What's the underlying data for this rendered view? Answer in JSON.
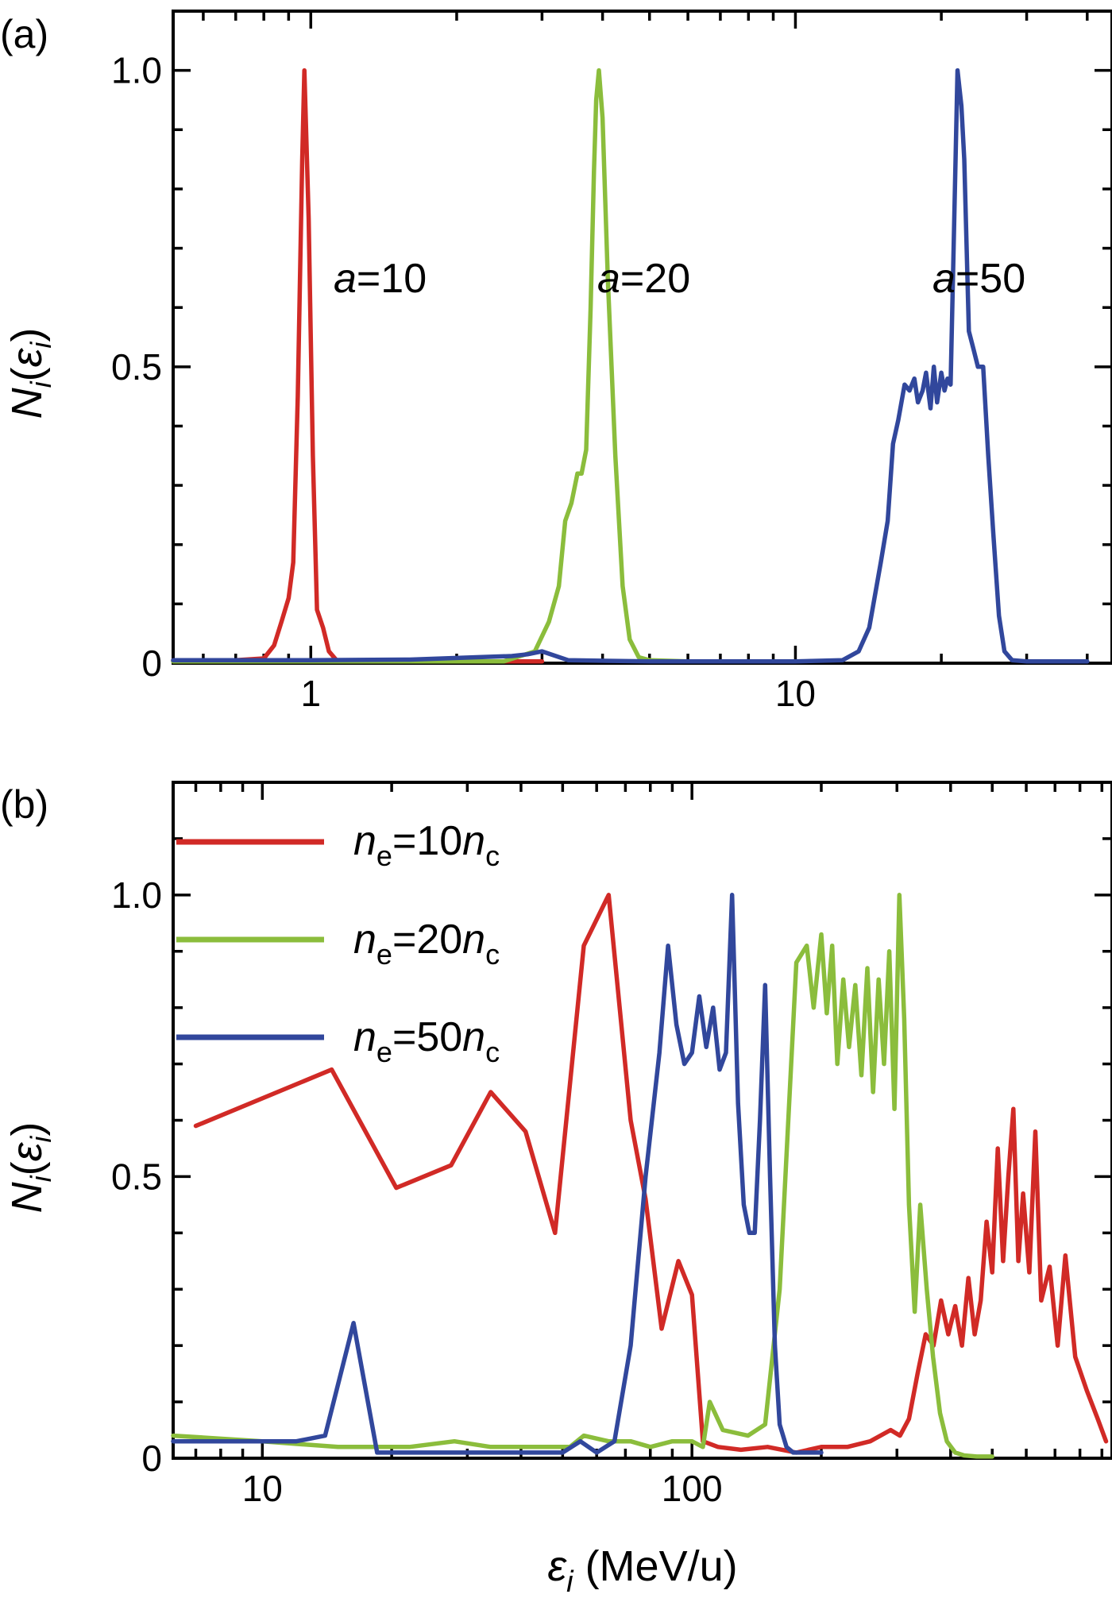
{
  "chart_data": [
    {
      "panel_label": "(a)",
      "type": "line",
      "x_scale": "log",
      "xlim": [
        0.52,
        45
      ],
      "ylim": [
        0,
        1.1
      ],
      "x_ticks": [
        {
          "value": 1,
          "label": "1"
        },
        {
          "value": 10,
          "label": "10"
        }
      ],
      "y_ticks": [
        {
          "value": 0,
          "label": "0"
        },
        {
          "value": 0.5,
          "label": "0.5"
        },
        {
          "value": 1.0,
          "label": "1.0"
        }
      ],
      "ylabel": {
        "main": "N",
        "sub1": "i",
        "open": "(",
        "eps": "ε",
        "sub2": "i",
        "close": ")"
      },
      "series": [
        {
          "annotation": {
            "italic": "a",
            "text": "=10"
          },
          "color": "#d12a26",
          "x": [
            0.52,
            0.7,
            0.8,
            0.84,
            0.87,
            0.9,
            0.92,
            0.94,
            0.96,
            0.97,
            0.99,
            1.01,
            1.03,
            1.06,
            1.09,
            1.13,
            1.2,
            1.5,
            2.0,
            3.0
          ],
          "y": [
            0.005,
            0.005,
            0.008,
            0.03,
            0.07,
            0.11,
            0.17,
            0.45,
            0.85,
            1.0,
            0.75,
            0.35,
            0.09,
            0.06,
            0.02,
            0.005,
            0.003,
            0.003,
            0.003,
            0.003
          ]
        },
        {
          "annotation": {
            "italic": "a",
            "text": "=20"
          },
          "color": "#8bbd3c",
          "x": [
            0.52,
            1.5,
            2.5,
            2.9,
            3.1,
            3.25,
            3.35,
            3.45,
            3.55,
            3.62,
            3.7,
            3.78,
            3.84,
            3.88,
            3.93,
            4.0,
            4.1,
            4.25,
            4.4,
            4.55,
            4.75,
            5.0,
            6.0
          ],
          "y": [
            0.003,
            0.003,
            0.003,
            0.02,
            0.07,
            0.13,
            0.24,
            0.27,
            0.32,
            0.32,
            0.36,
            0.6,
            0.83,
            0.95,
            1.0,
            0.92,
            0.65,
            0.35,
            0.13,
            0.04,
            0.01,
            0.005,
            0.003
          ]
        },
        {
          "annotation": {
            "italic": "a",
            "text": "=50"
          },
          "color": "#31479c",
          "x": [
            0.52,
            1.0,
            1.6,
            2.2,
            2.6,
            2.8,
            3.0,
            3.4,
            5.0,
            10.0,
            12.5,
            13.5,
            14.2,
            15.0,
            15.5,
            15.9,
            16.3,
            16.8,
            17.2,
            17.6,
            17.9,
            18.3,
            18.6,
            19.0,
            19.3,
            19.6,
            20.0,
            20.3,
            20.6,
            20.9,
            21.2,
            21.6,
            22.0,
            22.3,
            22.8,
            23.3,
            23.8,
            24.4,
            25.0,
            25.6,
            26.3,
            27.0,
            28.0,
            30.0,
            40.0
          ],
          "y": [
            0.005,
            0.005,
            0.006,
            0.01,
            0.012,
            0.015,
            0.02,
            0.005,
            0.003,
            0.003,
            0.005,
            0.02,
            0.06,
            0.17,
            0.24,
            0.37,
            0.41,
            0.47,
            0.46,
            0.48,
            0.44,
            0.46,
            0.49,
            0.43,
            0.5,
            0.44,
            0.49,
            0.46,
            0.48,
            0.47,
            0.7,
            1.0,
            0.94,
            0.85,
            0.56,
            0.53,
            0.5,
            0.5,
            0.35,
            0.22,
            0.08,
            0.02,
            0.005,
            0.003,
            0.003
          ]
        }
      ]
    },
    {
      "panel_label": "(b)",
      "type": "line",
      "x_scale": "log",
      "xlim": [
        6.2,
        950
      ],
      "ylim": [
        0,
        1.2
      ],
      "x_ticks": [
        {
          "value": 10,
          "label": "10"
        },
        {
          "value": 100,
          "label": "100"
        }
      ],
      "y_ticks": [
        {
          "value": 0,
          "label": "0"
        },
        {
          "value": 0.5,
          "label": "0.5"
        },
        {
          "value": 1.0,
          "label": "1.0"
        }
      ],
      "ylabel": {
        "main": "N",
        "sub1": "i",
        "open": "(",
        "eps": "ε",
        "sub2": "i",
        "close": ")"
      },
      "xlabel": {
        "eps": "ε",
        "sub": "i",
        "unit": " (MeV/u)"
      },
      "series": [
        {
          "legend": {
            "n1": "n",
            "s1": "e",
            "mid": "=10",
            "n2": "n",
            "s2": "c"
          },
          "color": "#d12a26",
          "x": [
            7.0,
            14.5,
            20.5,
            27.5,
            34,
            41,
            48,
            56,
            64,
            72,
            78,
            85,
            93,
            100,
            106,
            115,
            130,
            150,
            175,
            200,
            230,
            260,
            290,
            305,
            320,
            335,
            350,
            365,
            380,
            395,
            410,
            425,
            440,
            455,
            470,
            485,
            500,
            515,
            530,
            545,
            560,
            575,
            590,
            610,
            630,
            650,
            680,
            710,
            740,
            780,
            830,
            880,
            920
          ],
          "y": [
            0.59,
            0.69,
            0.48,
            0.52,
            0.65,
            0.58,
            0.4,
            0.91,
            1.0,
            0.6,
            0.46,
            0.23,
            0.35,
            0.29,
            0.03,
            0.02,
            0.015,
            0.02,
            0.01,
            0.02,
            0.02,
            0.03,
            0.05,
            0.04,
            0.07,
            0.15,
            0.22,
            0.2,
            0.28,
            0.22,
            0.27,
            0.2,
            0.32,
            0.22,
            0.28,
            0.42,
            0.33,
            0.55,
            0.35,
            0.5,
            0.62,
            0.35,
            0.47,
            0.33,
            0.58,
            0.28,
            0.34,
            0.2,
            0.36,
            0.18,
            0.12,
            0.07,
            0.03
          ]
        },
        {
          "legend": {
            "n1": "n",
            "s1": "e",
            "mid": "=20",
            "n2": "n",
            "s2": "c"
          },
          "color": "#8bbd3c",
          "x": [
            6.2,
            10,
            15,
            22,
            28,
            34,
            42,
            52,
            56,
            64,
            72,
            80,
            90,
            100,
            106,
            110,
            118,
            135,
            148,
            160,
            175,
            185,
            192,
            200,
            206,
            212,
            218,
            225,
            232,
            240,
            248,
            256,
            264,
            272,
            280,
            288,
            296,
            304,
            312,
            320,
            330,
            340,
            352,
            364,
            378,
            392,
            410,
            430,
            460,
            500
          ],
          "y": [
            0.04,
            0.03,
            0.02,
            0.02,
            0.03,
            0.02,
            0.02,
            0.02,
            0.04,
            0.03,
            0.03,
            0.02,
            0.03,
            0.03,
            0.02,
            0.1,
            0.05,
            0.04,
            0.06,
            0.3,
            0.88,
            0.91,
            0.8,
            0.93,
            0.79,
            0.91,
            0.7,
            0.85,
            0.73,
            0.84,
            0.68,
            0.87,
            0.65,
            0.85,
            0.7,
            0.9,
            0.62,
            1.0,
            0.78,
            0.45,
            0.26,
            0.45,
            0.3,
            0.18,
            0.08,
            0.03,
            0.01,
            0.005,
            0.003,
            0.003
          ]
        },
        {
          "legend": {
            "n1": "n",
            "s1": "e",
            "mid": "=50",
            "n2": "n",
            "s2": "c"
          },
          "color": "#31479c",
          "x": [
            6.2,
            8,
            10,
            12,
            14,
            16.3,
            18.5,
            22,
            30,
            40,
            50,
            55,
            60,
            66,
            72,
            78,
            84,
            88,
            92,
            96,
            100,
            104,
            108,
            112,
            116,
            120,
            124,
            128,
            132,
            136,
            140,
            144,
            148,
            152,
            156,
            160,
            166,
            172,
            180,
            190,
            200
          ],
          "y": [
            0.03,
            0.03,
            0.03,
            0.03,
            0.04,
            0.24,
            0.01,
            0.01,
            0.01,
            0.01,
            0.01,
            0.03,
            0.01,
            0.03,
            0.2,
            0.5,
            0.72,
            0.91,
            0.77,
            0.7,
            0.72,
            0.82,
            0.73,
            0.8,
            0.69,
            0.72,
            1.0,
            0.63,
            0.45,
            0.4,
            0.4,
            0.6,
            0.84,
            0.5,
            0.2,
            0.06,
            0.02,
            0.01,
            0.01,
            0.01,
            0.01
          ]
        }
      ]
    }
  ]
}
